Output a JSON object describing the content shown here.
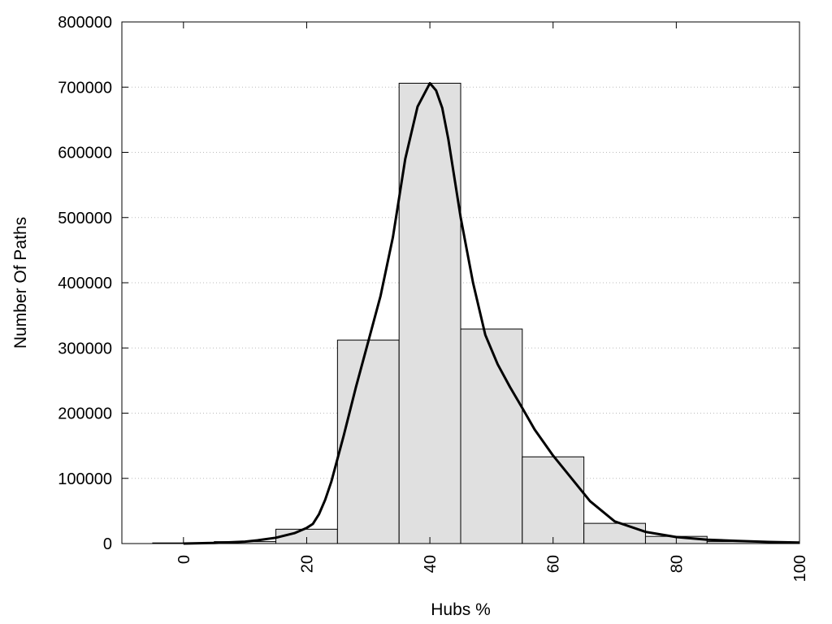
{
  "chart_data": {
    "type": "bar",
    "title": "",
    "xlabel": "Hubs %",
    "ylabel": "Number Of Paths",
    "xlim": [
      -10,
      100
    ],
    "ylim": [
      0,
      800000
    ],
    "xticks": [
      "0",
      "20",
      "40",
      "60",
      "80",
      "100"
    ],
    "xtick_values": [
      0,
      20,
      40,
      60,
      80,
      100
    ],
    "yticks": [
      "0",
      "100000",
      "200000",
      "300000",
      "400000",
      "500000",
      "600000",
      "700000",
      "800000"
    ],
    "ytick_values": [
      0,
      100000,
      200000,
      300000,
      400000,
      500000,
      600000,
      700000,
      800000
    ],
    "grid": "horizontal-dotted",
    "bin_width": 10,
    "bars": [
      {
        "x": 0,
        "value": 1000
      },
      {
        "x": 10,
        "value": 3000
      },
      {
        "x": 20,
        "value": 22000
      },
      {
        "x": 30,
        "value": 312000
      },
      {
        "x": 40,
        "value": 706000
      },
      {
        "x": 50,
        "value": 329000
      },
      {
        "x": 60,
        "value": 133000
      },
      {
        "x": 70,
        "value": 31000
      },
      {
        "x": 80,
        "value": 11000
      },
      {
        "x": 90,
        "value": 3000
      }
    ],
    "curve": [
      {
        "x": 0,
        "y": 0
      },
      {
        "x": 5,
        "y": 1000
      },
      {
        "x": 10,
        "y": 3000
      },
      {
        "x": 12,
        "y": 5000
      },
      {
        "x": 15,
        "y": 9000
      },
      {
        "x": 18,
        "y": 16000
      },
      {
        "x": 20,
        "y": 24000
      },
      {
        "x": 21,
        "y": 30000
      },
      {
        "x": 22,
        "y": 45000
      },
      {
        "x": 23,
        "y": 67000
      },
      {
        "x": 24,
        "y": 95000
      },
      {
        "x": 26,
        "y": 165000
      },
      {
        "x": 28,
        "y": 240000
      },
      {
        "x": 30,
        "y": 310000
      },
      {
        "x": 32,
        "y": 380000
      },
      {
        "x": 34,
        "y": 470000
      },
      {
        "x": 36,
        "y": 590000
      },
      {
        "x": 38,
        "y": 670000
      },
      {
        "x": 40,
        "y": 706000
      },
      {
        "x": 41,
        "y": 695000
      },
      {
        "x": 42,
        "y": 668000
      },
      {
        "x": 43,
        "y": 620000
      },
      {
        "x": 44,
        "y": 560000
      },
      {
        "x": 45,
        "y": 500000
      },
      {
        "x": 47,
        "y": 400000
      },
      {
        "x": 49,
        "y": 320000
      },
      {
        "x": 51,
        "y": 275000
      },
      {
        "x": 53,
        "y": 240000
      },
      {
        "x": 55,
        "y": 208000
      },
      {
        "x": 57,
        "y": 175000
      },
      {
        "x": 60,
        "y": 135000
      },
      {
        "x": 63,
        "y": 100000
      },
      {
        "x": 66,
        "y": 65000
      },
      {
        "x": 70,
        "y": 34000
      },
      {
        "x": 75,
        "y": 18000
      },
      {
        "x": 80,
        "y": 10000
      },
      {
        "x": 85,
        "y": 6000
      },
      {
        "x": 90,
        "y": 4000
      },
      {
        "x": 95,
        "y": 2500
      },
      {
        "x": 100,
        "y": 1500
      }
    ],
    "colors": {
      "bar_fill": "#e0e0e0",
      "bar_stroke": "#000000",
      "curve": "#000000",
      "grid": "#bbbbbb"
    }
  }
}
